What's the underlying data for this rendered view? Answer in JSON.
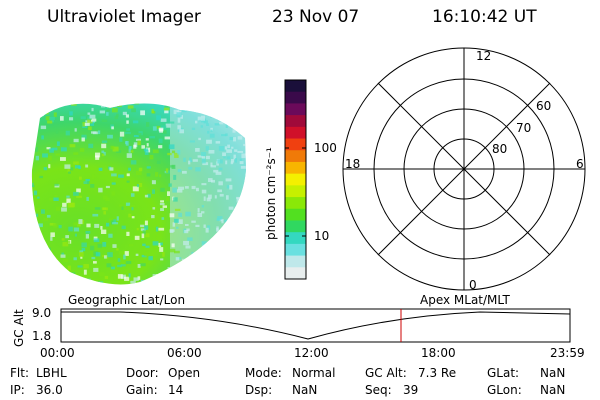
{
  "header": {
    "instrument": "Ultraviolet Imager",
    "date": "23 Nov 07",
    "time": "16:10:42 UT"
  },
  "colorbar": {
    "unit_label": "photon cm⁻²s⁻¹",
    "ticks": [
      "100",
      "10"
    ],
    "colors": [
      "#1a0f3a",
      "#3a0a4a",
      "#6b0a5a",
      "#a00a3a",
      "#d0102a",
      "#f04010",
      "#f07a08",
      "#f8b500",
      "#f4f000",
      "#c6f000",
      "#8ae808",
      "#52e020",
      "#30d860",
      "#34d8c0",
      "#6ae0e0",
      "#bfe8ea",
      "#e8eeee"
    ]
  },
  "polar_plot": {
    "mlt_labels": [
      "12",
      "18",
      "6",
      "0"
    ],
    "lat_labels": [
      "60",
      "70",
      "80"
    ]
  },
  "timeline": {
    "left_title": "Geographic Lat/Lon",
    "right_title": "Apex MLat/MLT",
    "axis_name": "GC Alt",
    "y_ticks": [
      "9.0",
      "1.8"
    ],
    "x_ticks": [
      "00:00",
      "06:00",
      "12:00",
      "18:00",
      "23:59"
    ],
    "current_marker_color": "#cc0000"
  },
  "info": {
    "filter_label": "Flt:",
    "filter_value": "LBHL",
    "ip_label": "IP:",
    "ip_value": "36.0",
    "door_label": "Door:",
    "door_value": "Open",
    "gain_label": "Gain:",
    "gain_value": "14",
    "mode_label": "Mode:",
    "mode_value": "Normal",
    "dsp_label": "Dsp:",
    "dsp_value": "NaN",
    "gcalt_label": "GC Alt:",
    "gcalt_value": "7.3 Re",
    "seq_label": "Seq:",
    "seq_value": "39",
    "glat_label": "GLat:",
    "glat_value": "NaN",
    "glon_label": "GLon:",
    "glon_value": "NaN"
  }
}
